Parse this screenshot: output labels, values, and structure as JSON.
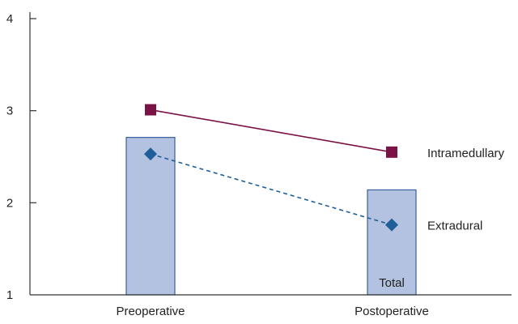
{
  "chart_data": {
    "type": "line",
    "categories": [
      "Preoperative",
      "Postoperative"
    ],
    "ylim": [
      1,
      4
    ],
    "yticks": [
      "1",
      "2",
      "3",
      "4"
    ],
    "grid": false,
    "bars": {
      "name": "",
      "values": [
        2.71,
        2.14
      ],
      "label": "Total",
      "label_on_category": 1,
      "fill": "#b3c2e0",
      "stroke": "#3a5f9e"
    },
    "series": [
      {
        "name": "Intramedullary",
        "values": [
          3.01,
          2.55
        ],
        "marker": "square",
        "line_style": "solid",
        "color": "#7a1245"
      },
      {
        "name": "Extradural",
        "values": [
          2.53,
          1.76
        ],
        "marker": "diamond",
        "line_style": "dashed",
        "color": "#1f5f99"
      }
    ],
    "legend_placement": "right of line ends"
  }
}
